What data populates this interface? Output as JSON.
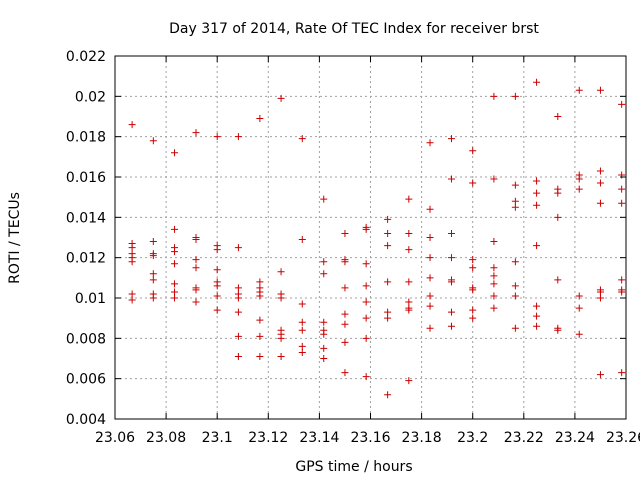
{
  "chart_data": {
    "type": "scatter",
    "title": "Day 317 of 2014, Rate Of TEC Index for receiver brst",
    "xlabel": "GPS time / hours",
    "ylabel": "ROTI / TECUs",
    "xlim": [
      23.06,
      23.26
    ],
    "ylim": [
      0.004,
      0.022
    ],
    "x_ticks": [
      23.06,
      23.08,
      23.1,
      23.12,
      23.14,
      23.16,
      23.18,
      23.2,
      23.22,
      23.24,
      23.26
    ],
    "x_tick_labels": [
      "23.06",
      "23.08",
      "23.1",
      "23.12",
      "23.14",
      "23.16",
      "23.18",
      "23.2",
      "23.22",
      "23.24",
      "23.26"
    ],
    "y_ticks": [
      0.004,
      0.006,
      0.008,
      0.01,
      0.012,
      0.014,
      0.016,
      0.018,
      0.02,
      0.022
    ],
    "y_tick_labels": [
      "0.004",
      "0.006",
      "0.008",
      "0.01",
      "0.012",
      "0.014",
      "0.016",
      "0.018",
      "0.02",
      "0.022"
    ],
    "grid": true,
    "marker": "plus",
    "marker_color": "#cc0000",
    "points": [
      [
        23.0667,
        0.0186
      ],
      [
        23.0667,
        0.0127
      ],
      [
        23.0667,
        0.0125
      ],
      [
        23.0667,
        0.0122
      ],
      [
        23.0667,
        0.012
      ],
      [
        23.0667,
        0.0118
      ],
      [
        23.0667,
        0.0102
      ],
      [
        23.0667,
        0.0099
      ],
      [
        23.075,
        0.0178
      ],
      [
        23.075,
        0.0128
      ],
      [
        23.075,
        0.0122
      ],
      [
        23.075,
        0.0121
      ],
      [
        23.075,
        0.0112
      ],
      [
        23.075,
        0.0109
      ],
      [
        23.075,
        0.0102
      ],
      [
        23.075,
        0.01
      ],
      [
        23.0833,
        0.0172
      ],
      [
        23.0833,
        0.0134
      ],
      [
        23.0833,
        0.0125
      ],
      [
        23.0833,
        0.0123
      ],
      [
        23.0833,
        0.0117
      ],
      [
        23.0833,
        0.0107
      ],
      [
        23.0833,
        0.0103
      ],
      [
        23.0833,
        0.01
      ],
      [
        23.0917,
        0.0182
      ],
      [
        23.0917,
        0.013
      ],
      [
        23.0917,
        0.0129
      ],
      [
        23.0917,
        0.0119
      ],
      [
        23.0917,
        0.0115
      ],
      [
        23.0917,
        0.0105
      ],
      [
        23.0917,
        0.0104
      ],
      [
        23.0917,
        0.0098
      ],
      [
        23.1,
        0.018
      ],
      [
        23.1,
        0.0126
      ],
      [
        23.1,
        0.0124
      ],
      [
        23.1,
        0.0114
      ],
      [
        23.1,
        0.0108
      ],
      [
        23.1,
        0.0106
      ],
      [
        23.1,
        0.0101
      ],
      [
        23.1,
        0.0094
      ],
      [
        23.1083,
        0.018
      ],
      [
        23.1083,
        0.0125
      ],
      [
        23.1083,
        0.0105
      ],
      [
        23.1083,
        0.0102
      ],
      [
        23.1083,
        0.01
      ],
      [
        23.1083,
        0.0093
      ],
      [
        23.1083,
        0.0081
      ],
      [
        23.1083,
        0.0071
      ],
      [
        23.1167,
        0.0189
      ],
      [
        23.1167,
        0.0108
      ],
      [
        23.1167,
        0.0105
      ],
      [
        23.1167,
        0.0103
      ],
      [
        23.1167,
        0.0101
      ],
      [
        23.1167,
        0.0089
      ],
      [
        23.1167,
        0.0081
      ],
      [
        23.1167,
        0.0071
      ],
      [
        23.125,
        0.0199
      ],
      [
        23.125,
        0.0113
      ],
      [
        23.125,
        0.0102
      ],
      [
        23.125,
        0.01
      ],
      [
        23.125,
        0.0084
      ],
      [
        23.125,
        0.0082
      ],
      [
        23.125,
        0.008
      ],
      [
        23.125,
        0.0071
      ],
      [
        23.1333,
        0.0179
      ],
      [
        23.1333,
        0.0129
      ],
      [
        23.1333,
        0.0097
      ],
      [
        23.1333,
        0.0088
      ],
      [
        23.1333,
        0.0084
      ],
      [
        23.1333,
        0.0076
      ],
      [
        23.1333,
        0.0073
      ],
      [
        23.1417,
        0.0149
      ],
      [
        23.1417,
        0.0118
      ],
      [
        23.1417,
        0.0112
      ],
      [
        23.1417,
        0.0088
      ],
      [
        23.1417,
        0.0084
      ],
      [
        23.1417,
        0.0082
      ],
      [
        23.1417,
        0.0075
      ],
      [
        23.1417,
        0.007
      ],
      [
        23.15,
        0.0132
      ],
      [
        23.15,
        0.0119
      ],
      [
        23.15,
        0.0118
      ],
      [
        23.15,
        0.0105
      ],
      [
        23.15,
        0.0092
      ],
      [
        23.15,
        0.0087
      ],
      [
        23.15,
        0.0078
      ],
      [
        23.15,
        0.0063
      ],
      [
        23.1583,
        0.0135
      ],
      [
        23.1583,
        0.0134
      ],
      [
        23.1583,
        0.0117
      ],
      [
        23.1583,
        0.0106
      ],
      [
        23.1583,
        0.0098
      ],
      [
        23.1583,
        0.009
      ],
      [
        23.1583,
        0.008
      ],
      [
        23.1583,
        0.0061
      ],
      [
        23.1667,
        0.0139
      ],
      [
        23.1667,
        0.0132
      ],
      [
        23.1667,
        0.0126
      ],
      [
        23.1667,
        0.0108
      ],
      [
        23.1667,
        0.0093
      ],
      [
        23.1667,
        0.009
      ],
      [
        23.1667,
        0.0052
      ],
      [
        23.175,
        0.0149
      ],
      [
        23.175,
        0.0132
      ],
      [
        23.175,
        0.0124
      ],
      [
        23.175,
        0.0108
      ],
      [
        23.175,
        0.0098
      ],
      [
        23.175,
        0.0095
      ],
      [
        23.175,
        0.0094
      ],
      [
        23.175,
        0.0059
      ],
      [
        23.1833,
        0.0177
      ],
      [
        23.1833,
        0.0144
      ],
      [
        23.1833,
        0.013
      ],
      [
        23.1833,
        0.012
      ],
      [
        23.1833,
        0.011
      ],
      [
        23.1833,
        0.0101
      ],
      [
        23.1833,
        0.0096
      ],
      [
        23.1833,
        0.0085
      ],
      [
        23.1917,
        0.0179
      ],
      [
        23.1917,
        0.0159
      ],
      [
        23.1917,
        0.0132
      ],
      [
        23.1917,
        0.012
      ],
      [
        23.1917,
        0.0109
      ],
      [
        23.1917,
        0.0108
      ],
      [
        23.1917,
        0.0093
      ],
      [
        23.1917,
        0.0086
      ],
      [
        23.2,
        0.0173
      ],
      [
        23.2,
        0.0157
      ],
      [
        23.2,
        0.0119
      ],
      [
        23.2,
        0.0115
      ],
      [
        23.2,
        0.0105
      ],
      [
        23.2,
        0.0104
      ],
      [
        23.2,
        0.0094
      ],
      [
        23.2,
        0.009
      ],
      [
        23.2083,
        0.02
      ],
      [
        23.2083,
        0.0159
      ],
      [
        23.2083,
        0.0128
      ],
      [
        23.2083,
        0.0115
      ],
      [
        23.2083,
        0.0111
      ],
      [
        23.2083,
        0.0107
      ],
      [
        23.2083,
        0.0101
      ],
      [
        23.2083,
        0.0095
      ],
      [
        23.2167,
        0.02
      ],
      [
        23.2167,
        0.0156
      ],
      [
        23.2167,
        0.0148
      ],
      [
        23.2167,
        0.0145
      ],
      [
        23.2167,
        0.0118
      ],
      [
        23.2167,
        0.0106
      ],
      [
        23.2167,
        0.0101
      ],
      [
        23.2167,
        0.0085
      ],
      [
        23.225,
        0.0207
      ],
      [
        23.225,
        0.0158
      ],
      [
        23.225,
        0.0152
      ],
      [
        23.225,
        0.0146
      ],
      [
        23.225,
        0.0126
      ],
      [
        23.225,
        0.0096
      ],
      [
        23.225,
        0.0091
      ],
      [
        23.225,
        0.0086
      ],
      [
        23.2333,
        0.019
      ],
      [
        23.2333,
        0.0154
      ],
      [
        23.2333,
        0.0152
      ],
      [
        23.2333,
        0.014
      ],
      [
        23.2333,
        0.0109
      ],
      [
        23.2333,
        0.0085
      ],
      [
        23.2333,
        0.0084
      ],
      [
        23.2417,
        0.0203
      ],
      [
        23.2417,
        0.0161
      ],
      [
        23.2417,
        0.0159
      ],
      [
        23.2417,
        0.0154
      ],
      [
        23.2417,
        0.0101
      ],
      [
        23.2417,
        0.0095
      ],
      [
        23.2417,
        0.0082
      ],
      [
        23.25,
        0.0203
      ],
      [
        23.25,
        0.0163
      ],
      [
        23.25,
        0.0157
      ],
      [
        23.25,
        0.0147
      ],
      [
        23.25,
        0.0104
      ],
      [
        23.25,
        0.0103
      ],
      [
        23.25,
        0.01
      ],
      [
        23.25,
        0.0062
      ],
      [
        23.2583,
        0.0196
      ],
      [
        23.2583,
        0.0161
      ],
      [
        23.2583,
        0.0154
      ],
      [
        23.2583,
        0.0147
      ],
      [
        23.2583,
        0.0109
      ],
      [
        23.2583,
        0.0104
      ],
      [
        23.2583,
        0.0103
      ],
      [
        23.2583,
        0.0063
      ]
    ]
  }
}
